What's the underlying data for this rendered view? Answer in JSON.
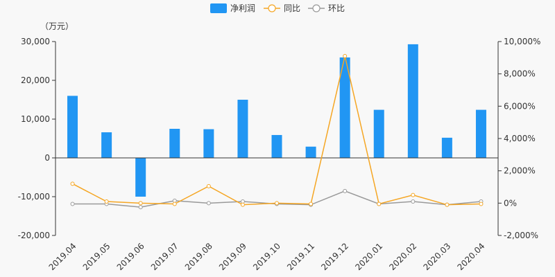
{
  "chart_data": {
    "type": "bar",
    "unit_label": "（万元）",
    "categories": [
      "2019.04",
      "2019.05",
      "2019.06",
      "2019.07",
      "2019.08",
      "2019.09",
      "2019.10",
      "2019.11",
      "2019.12",
      "2020.01",
      "2020.02",
      "2020.03",
      "2020.04"
    ],
    "series": [
      {
        "name": "净利润",
        "type": "bar",
        "axis": "left",
        "values": [
          16000,
          6600,
          -10000,
          7500,
          7400,
          15000,
          5900,
          2900,
          25900,
          12400,
          29300,
          5200,
          12400
        ]
      },
      {
        "name": "同比",
        "type": "line",
        "axis": "right",
        "values": [
          1200,
          100,
          0,
          -50,
          1050,
          -100,
          0,
          -50,
          9100,
          -50,
          500,
          -100,
          -50
        ]
      },
      {
        "name": "环比",
        "type": "line",
        "axis": "right",
        "values": [
          -50,
          -50,
          -250,
          150,
          0,
          100,
          -50,
          -100,
          750,
          -50,
          100,
          -100,
          100
        ]
      }
    ],
    "left_axis": {
      "ylim": [
        -20000,
        30000
      ],
      "ticks": [
        -20000,
        -10000,
        0,
        10000,
        20000,
        30000
      ],
      "tick_labels": [
        "-20,000",
        "-10,000",
        "0",
        "10,000",
        "20,000",
        "30,000"
      ]
    },
    "right_axis": {
      "ylim": [
        -2000,
        10000
      ],
      "ticks": [
        -2000,
        0,
        2000,
        4000,
        6000,
        8000,
        10000
      ],
      "tick_labels": [
        "-2,000%",
        "0%",
        "2,000%",
        "4,000%",
        "6,000%",
        "8,000%",
        "10,000%"
      ]
    },
    "colors": {
      "bar": "#2196f3",
      "yoy": "#f5a623",
      "mom": "#999999",
      "axis": "#333333"
    },
    "legend_position": "top-center",
    "grid": false
  }
}
